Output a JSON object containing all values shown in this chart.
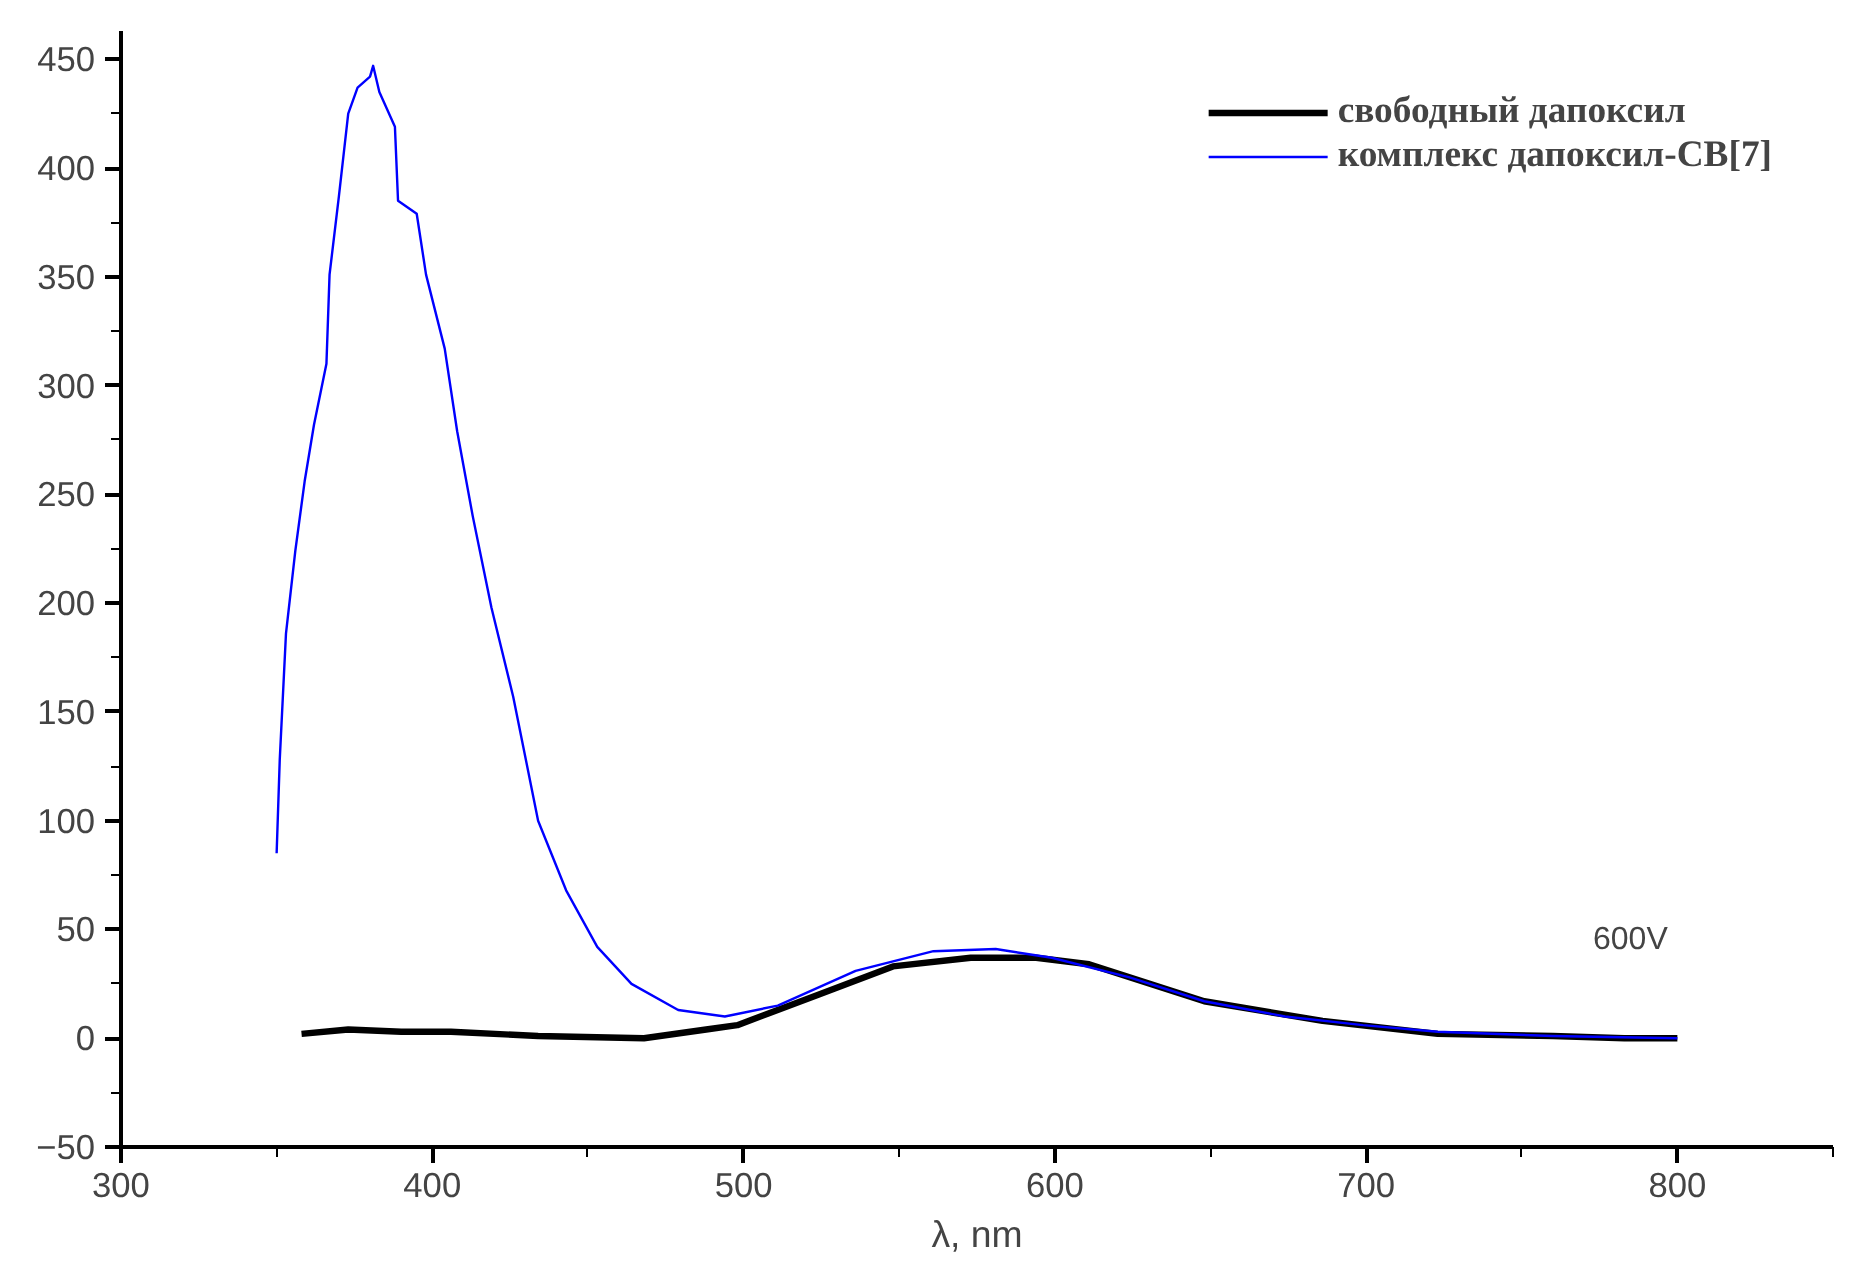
{
  "chart_data": {
    "type": "line",
    "xlabel": "λ, nm",
    "xlim": [
      300,
      850
    ],
    "ylim": [
      -50,
      463
    ],
    "xticks": [
      300,
      400,
      500,
      600,
      700,
      800
    ],
    "yticks": [
      -50,
      0,
      50,
      100,
      150,
      200,
      250,
      300,
      350,
      400,
      450
    ],
    "grid": false,
    "legend": "top right",
    "annotations": [
      "600V"
    ],
    "series": [
      {
        "name": "свободный дапоксил",
        "color": "#000000",
        "x": [
          358,
          373,
          390,
          406,
          434,
          468,
          488,
          498,
          524,
          548,
          573,
          594,
          611,
          648,
          686,
          723,
          760,
          783,
          800
        ],
        "values": [
          2,
          4,
          3,
          3,
          1,
          0,
          4,
          6,
          20,
          33,
          37,
          37,
          34,
          17,
          8,
          2,
          1,
          0,
          0
        ]
      },
      {
        "name": "комплекс дапоксил-CB[7]",
        "color": "#0000ff",
        "x": [
          350,
          351,
          353,
          356,
          359,
          362,
          366,
          367,
          370,
          373,
          376,
          380,
          381,
          383,
          388,
          389,
          395,
          398,
          404,
          408,
          413,
          419,
          426,
          434,
          443,
          453,
          464,
          479,
          494,
          511,
          536,
          561,
          581,
          599,
          624,
          648,
          674,
          699,
          723,
          760,
          800
        ],
        "values": [
          85,
          128,
          186,
          224,
          256,
          282,
          310,
          351,
          387,
          425,
          437,
          442,
          447,
          435,
          419,
          385,
          379,
          351,
          317,
          279,
          240,
          198,
          157,
          100,
          68,
          42,
          25,
          13,
          10,
          15,
          31,
          40,
          41,
          37,
          28,
          17,
          10,
          6,
          3,
          1,
          0
        ]
      }
    ]
  }
}
